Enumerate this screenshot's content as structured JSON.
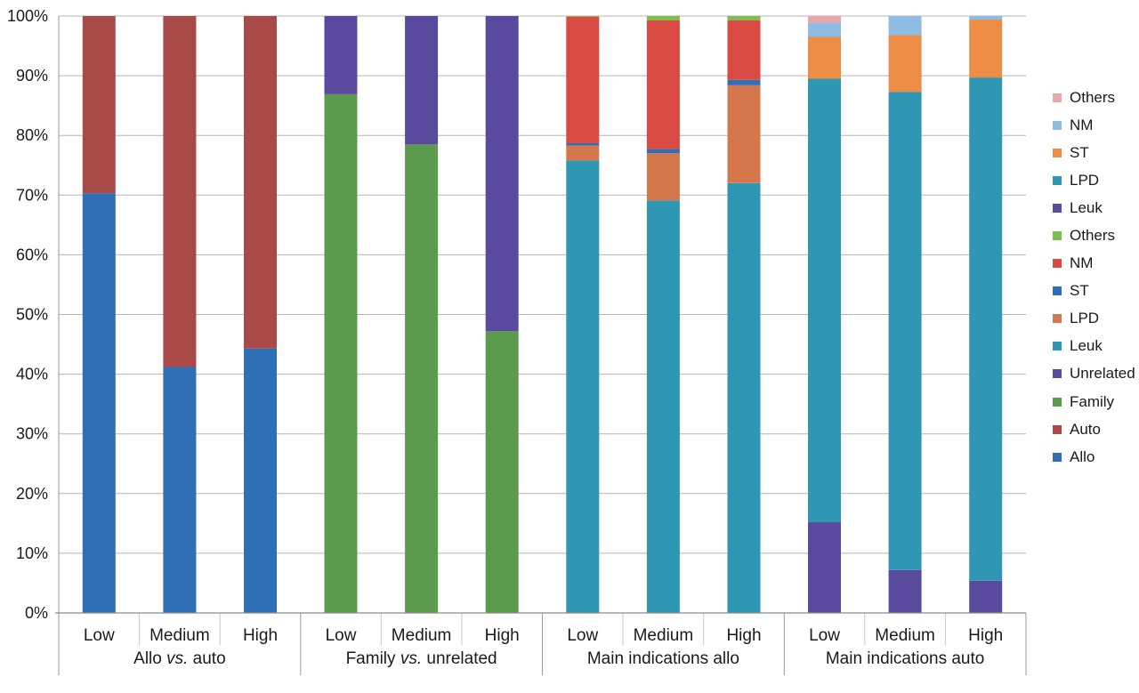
{
  "chart_data": {
    "type": "bar",
    "stacked": true,
    "ylim": [
      0,
      100
    ],
    "y_ticks": [
      "0%",
      "10%",
      "20%",
      "30%",
      "40%",
      "50%",
      "60%",
      "70%",
      "80%",
      "90%",
      "100%"
    ],
    "grid": true,
    "legend_position": "right",
    "groups": [
      {
        "label_parts": [
          "Allo ",
          "vs.",
          " auto"
        ],
        "categories": [
          "Low",
          "Medium",
          "High"
        ],
        "bars": [
          [
            {
              "series": "Allo",
              "value": 70.3
            },
            {
              "series": "Auto",
              "value": 29.7
            }
          ],
          [
            {
              "series": "Allo",
              "value": 41.2
            },
            {
              "series": "Auto",
              "value": 58.8
            }
          ],
          [
            {
              "series": "Allo",
              "value": 44.3
            },
            {
              "series": "Auto",
              "value": 55.7
            }
          ]
        ]
      },
      {
        "label_parts": [
          "Family ",
          "vs.",
          " unrelated"
        ],
        "categories": [
          "Low",
          "Medium",
          "High"
        ],
        "bars": [
          [
            {
              "series": "Family",
              "value": 86.9
            },
            {
              "series": "Unrelated",
              "value": 13.1
            }
          ],
          [
            {
              "series": "Family",
              "value": 78.5
            },
            {
              "series": "Unrelated",
              "value": 21.5
            }
          ],
          [
            {
              "series": "Family",
              "value": 47.2
            },
            {
              "series": "Unrelated",
              "value": 52.8
            }
          ]
        ]
      },
      {
        "label_parts": [
          "Main indications allo"
        ],
        "categories": [
          "Low",
          "Medium",
          "High"
        ],
        "bars": [
          [
            {
              "series": "Leuk",
              "value": 75.8
            },
            {
              "series": "LPD",
              "value": 2.5
            },
            {
              "series": "ST",
              "value": 0.4
            },
            {
              "series": "NM",
              "value": 21.2
            },
            {
              "series": "Others",
              "value": 0.1
            }
          ],
          [
            {
              "series": "Leuk",
              "value": 69.1
            },
            {
              "series": "LPD",
              "value": 7.9
            },
            {
              "series": "ST",
              "value": 0.7
            },
            {
              "series": "NM",
              "value": 21.6
            },
            {
              "series": "Others",
              "value": 0.7
            }
          ],
          [
            {
              "series": "Leuk",
              "value": 72.0
            },
            {
              "series": "LPD",
              "value": 16.4
            },
            {
              "series": "ST",
              "value": 0.9
            },
            {
              "series": "NM",
              "value": 10.0
            },
            {
              "series": "Others",
              "value": 0.7
            }
          ]
        ]
      },
      {
        "label_parts": [
          "Main indications auto"
        ],
        "categories": [
          "Low",
          "Medium",
          "High"
        ],
        "bars": [
          [
            {
              "series": "Leuk (auto)",
              "value": 15.2
            },
            {
              "series": "LPD (auto)",
              "value": 74.3
            },
            {
              "series": "ST (auto)",
              "value": 7.0
            },
            {
              "series": "NM (auto)",
              "value": 2.4
            },
            {
              "series": "Others (auto)",
              "value": 1.1
            }
          ],
          [
            {
              "series": "Leuk (auto)",
              "value": 7.2
            },
            {
              "series": "LPD (auto)",
              "value": 80.1
            },
            {
              "series": "ST (auto)",
              "value": 9.5
            },
            {
              "series": "NM (auto)",
              "value": 3.2
            },
            {
              "series": "Others (auto)",
              "value": 0.0
            }
          ],
          [
            {
              "series": "Leuk (auto)",
              "value": 5.4
            },
            {
              "series": "LPD (auto)",
              "value": 84.3
            },
            {
              "series": "ST (auto)",
              "value": 9.7
            },
            {
              "series": "NM (auto)",
              "value": 0.6
            },
            {
              "series": "Others (auto)",
              "value": 0.0
            }
          ]
        ]
      }
    ],
    "series_colors": {
      "Allo": "#2f6fb5",
      "Auto": "#a84a48",
      "Family": "#5c9a4d",
      "Unrelated": "#5a4a9e",
      "Leuk": "#2f97b3",
      "LPD": "#d4774d",
      "ST": "#2f6fb5",
      "NM": "#d94a43",
      "Others": "#7bbf4a",
      "Leuk (auto)": "#5a4a9e",
      "LPD (auto)": "#2f97b3",
      "ST (auto)": "#ec8c45",
      "NM (auto)": "#8fbce3",
      "Others (auto)": "#e9a8a8"
    },
    "legend": [
      {
        "label": "Others",
        "series": "Others (auto)"
      },
      {
        "label": "NM",
        "series": "NM (auto)"
      },
      {
        "label": "ST",
        "series": "ST (auto)"
      },
      {
        "label": "LPD",
        "series": "LPD (auto)"
      },
      {
        "label": "Leuk",
        "series": "Leuk (auto)"
      },
      {
        "label": "Others",
        "series": "Others"
      },
      {
        "label": "NM",
        "series": "NM"
      },
      {
        "label": "ST",
        "series": "ST"
      },
      {
        "label": "LPD",
        "series": "LPD"
      },
      {
        "label": "Leuk",
        "series": "Leuk"
      },
      {
        "label": "Unrelated",
        "series": "Unrelated"
      },
      {
        "label": "Family",
        "series": "Family"
      },
      {
        "label": "Auto",
        "series": "Auto"
      },
      {
        "label": "Allo",
        "series": "Allo"
      }
    ]
  }
}
